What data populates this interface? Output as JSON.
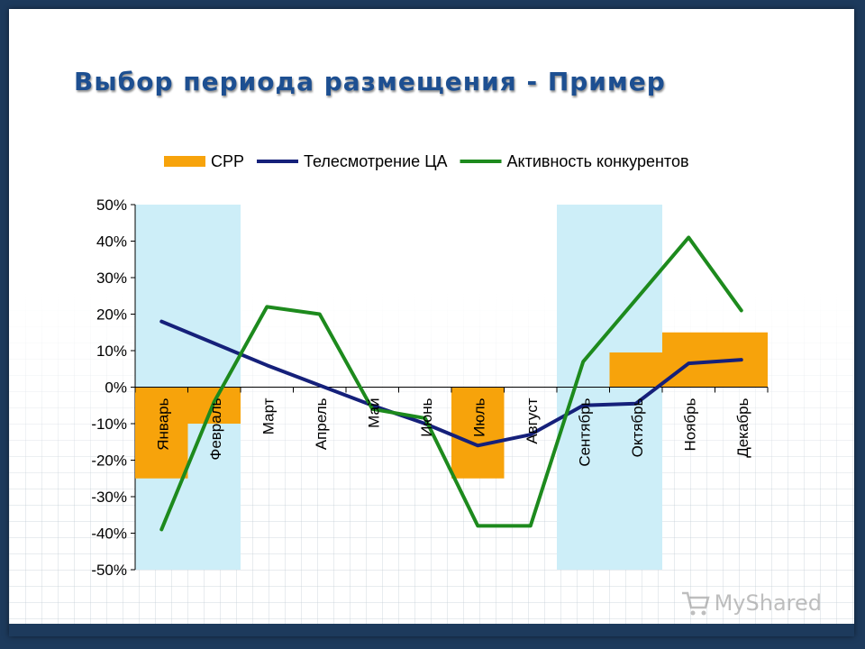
{
  "slide": {
    "title": "Выбор периода размещения - Пример",
    "logo_text": "MyShared"
  },
  "colors": {
    "cpp": "#f7a30b",
    "tv": "#15207a",
    "competitors": "#1d8a1d",
    "highlight": "#cdeef8",
    "title": "#1d4f91"
  },
  "chart_data": {
    "type": "bar",
    "categories": [
      "Январь",
      "Февраль",
      "Март",
      "Апрель",
      "Май",
      "Июнь",
      "Июль",
      "Август",
      "Сентябрь",
      "Октябрь",
      "Ноябрь",
      "Декабрь"
    ],
    "series": [
      {
        "name": "CPP",
        "kind": "bar",
        "values": [
          -25,
          -10,
          0,
          0,
          0,
          0,
          -25,
          0,
          0,
          9.5,
          15,
          15
        ]
      },
      {
        "name": "Телесмотрение ЦА",
        "kind": "line",
        "values": [
          18,
          12,
          6,
          0.5,
          -5,
          -10,
          -16,
          -13,
          -5,
          -4.5,
          6.5,
          7.5
        ]
      },
      {
        "name": "Активность конкурентов",
        "kind": "line",
        "values": [
          -39,
          -4,
          22,
          20,
          -6,
          -8.5,
          -38,
          -38,
          7,
          24,
          41,
          21
        ]
      }
    ],
    "highlighted_periods": [
      [
        "Январь",
        "Февраль"
      ],
      [
        "Сентябрь",
        "Октябрь"
      ]
    ],
    "ylim": [
      -50,
      50
    ],
    "yticks": [
      50,
      40,
      30,
      20,
      10,
      0,
      -10,
      -20,
      -30,
      -40,
      -50
    ],
    "ytick_labels": [
      "50%",
      "40%",
      "30%",
      "20%",
      "10%",
      "0%",
      "-10%",
      "-20%",
      "-30%",
      "-40%",
      "-50%"
    ],
    "legend_position": "top",
    "grid": false,
    "xlabel": "",
    "ylabel": ""
  }
}
